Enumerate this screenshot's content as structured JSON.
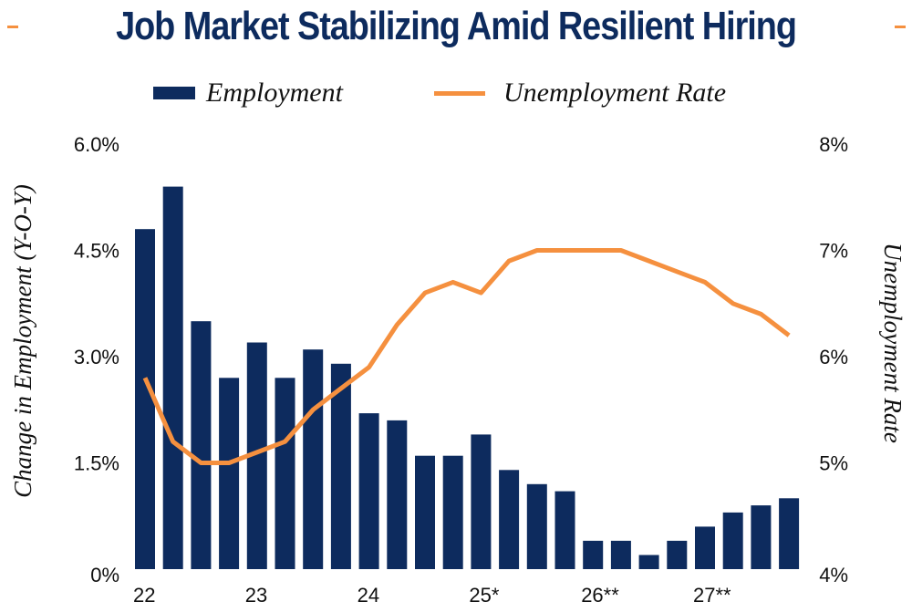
{
  "chart_data": {
    "type": "bar+line",
    "title": "Job Market Stabilizing Amid Resilient Hiring",
    "categories": [
      "22Q1",
      "22Q2",
      "22Q3",
      "22Q4",
      "23Q1",
      "23Q2",
      "23Q3",
      "23Q4",
      "24Q1",
      "24Q2",
      "24Q3",
      "24Q4",
      "25Q1",
      "25Q2",
      "25Q3",
      "25Q4",
      "26Q1",
      "26Q2",
      "26Q3",
      "26Q4",
      "27Q1",
      "27Q2",
      "27Q3",
      "27Q4"
    ],
    "x_tick_labels": [
      {
        "label": "22",
        "index": 0
      },
      {
        "label": "23",
        "index": 4
      },
      {
        "label": "24",
        "index": 8
      },
      {
        "label": "25*",
        "index": 12
      },
      {
        "label": "26**",
        "index": 16
      },
      {
        "label": "27**",
        "index": 20
      }
    ],
    "series": [
      {
        "name": "Employment",
        "type": "bar",
        "axis": "left",
        "color": "#0d2b5e",
        "values": [
          4.8,
          5.4,
          3.5,
          2.7,
          3.2,
          2.7,
          3.1,
          2.9,
          2.2,
          2.1,
          1.6,
          1.6,
          1.9,
          1.4,
          1.2,
          1.1,
          0.4,
          0.4,
          0.2,
          0.4,
          0.6,
          0.8,
          0.9,
          1.0
        ]
      },
      {
        "name": "Unemployment Rate",
        "type": "line",
        "axis": "right",
        "color": "#f5903f",
        "values": [
          5.8,
          5.2,
          5.0,
          5.0,
          5.1,
          5.2,
          5.5,
          5.7,
          5.9,
          6.3,
          6.6,
          6.7,
          6.6,
          6.9,
          7.0,
          7.0,
          7.0,
          7.0,
          6.9,
          6.8,
          6.7,
          6.5,
          6.4,
          6.2
        ]
      }
    ],
    "y_left": {
      "label": "Change in Employment (Y-O-Y)",
      "range": [
        0,
        6.0
      ],
      "ticks": [
        0,
        1.5,
        3.0,
        4.5,
        6.0
      ],
      "tick_labels": [
        "0%",
        "1.5%",
        "3.0%",
        "4.5%",
        "6.0%"
      ]
    },
    "y_right": {
      "label": "Unemployment Rate",
      "range": [
        4,
        8
      ],
      "ticks": [
        4,
        5,
        6,
        7,
        8
      ],
      "tick_labels": [
        "4%",
        "5%",
        "6%",
        "7%",
        "8%"
      ]
    },
    "grid": false,
    "legend": {
      "position": "top-center",
      "entries": [
        "Employment",
        "Unemployment Rate"
      ]
    }
  }
}
